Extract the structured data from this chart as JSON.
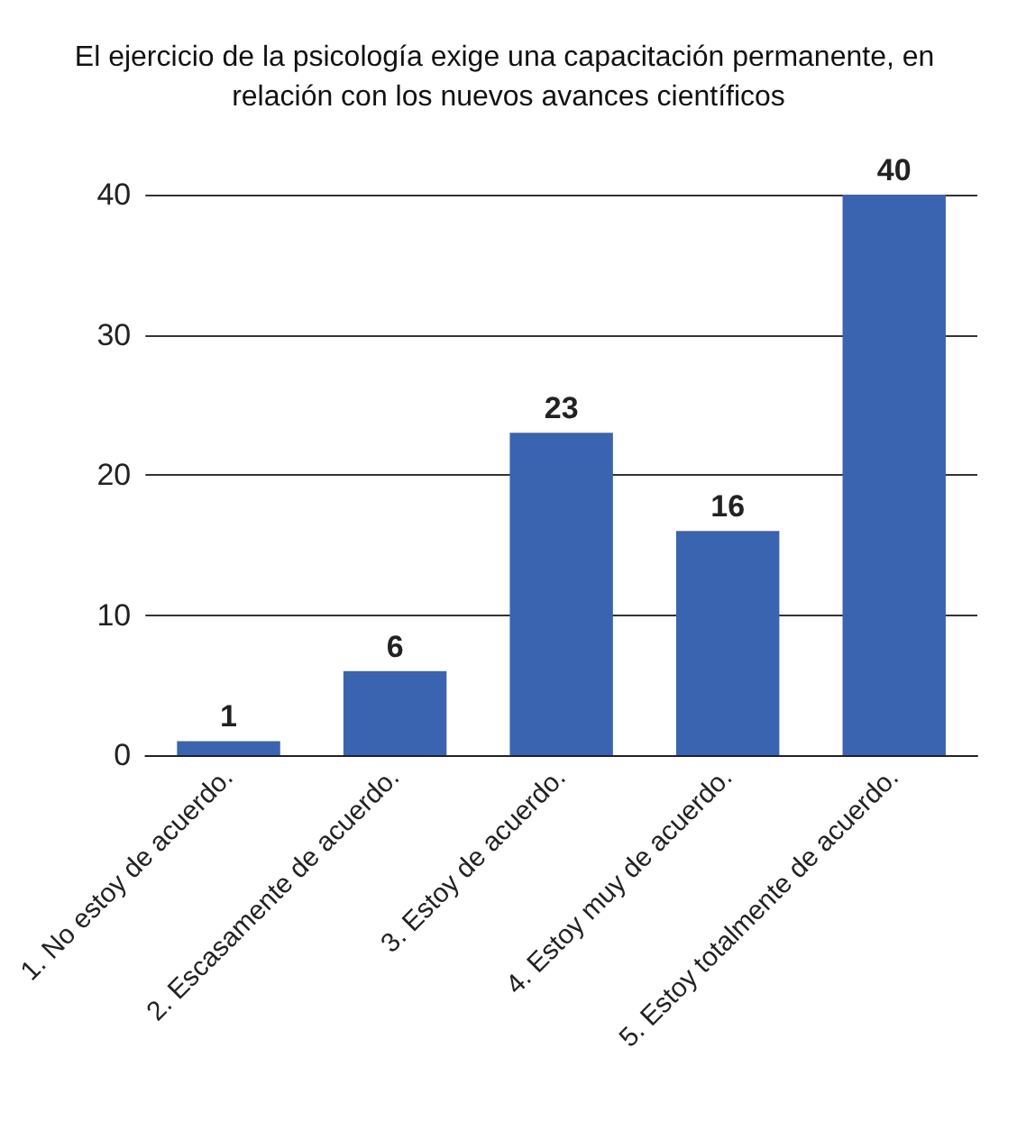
{
  "chart_data": {
    "type": "bar",
    "title": "El ejercicio de la psicología exige una capacitación permanente, en relación con los nuevos avances científicos",
    "categories": [
      "1. No estoy de acuerdo.",
      "2. Escasamente de acuerdo.",
      "3. Estoy de acuerdo.",
      "4. Estoy muy de acuerdo.",
      "5. Estoy totalmente de acuerdo."
    ],
    "values": [
      1,
      6,
      23,
      16,
      40
    ],
    "color": "#3a64b0",
    "ylim": [
      0,
      40
    ],
    "yticks": [
      0,
      10,
      20,
      30,
      40
    ],
    "grid": "y",
    "data_labels": true
  }
}
